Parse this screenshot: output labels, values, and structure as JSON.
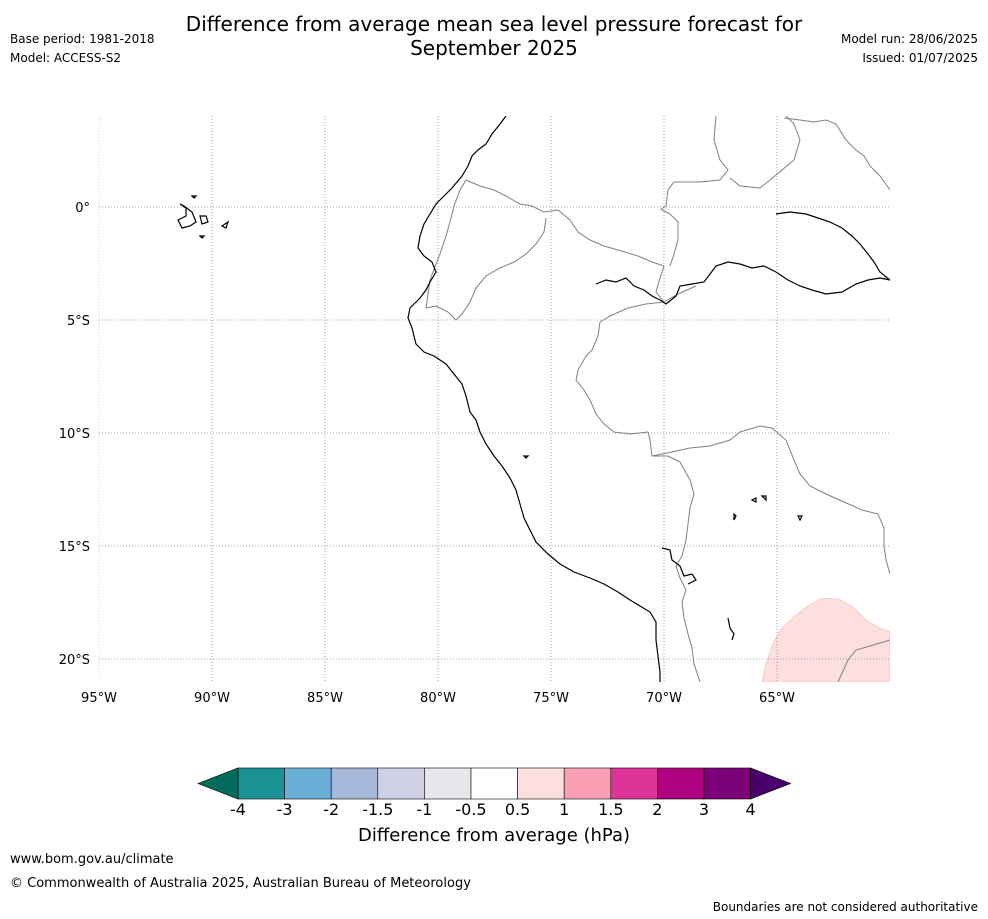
{
  "header": {
    "title": "Difference from average mean sea level pressure forecast for\nSeptember 2025",
    "base_period": "Base period: 1981-2018",
    "model": "Model: ACCESS-S2",
    "model_run": "Model run: 28/06/2025",
    "issued": "Issued: 01/07/2025"
  },
  "map": {
    "lon_labels": [
      "95°W",
      "90°W",
      "85°W",
      "80°W",
      "75°W",
      "70°W",
      "65°W"
    ],
    "lat_labels": [
      "0°",
      "5°S",
      "10°S",
      "15°S",
      "20°S"
    ],
    "coastline_color": "#000000",
    "border_color": "#808080",
    "grid_color": "#888888",
    "anomaly_fill_color": "#fde0dd"
  },
  "colorbar": {
    "title": "Difference from average (hPa)",
    "ticks": [
      "-4",
      "-3",
      "-2",
      "-1.5",
      "-1",
      "-0.5",
      "0.5",
      "1",
      "1.5",
      "2",
      "3",
      "4"
    ],
    "colors": [
      "#1b9296",
      "#6baed6",
      "#a6b8d9",
      "#cfd0e6",
      "#e7e6ea",
      "#ffffff",
      "#fde0dd",
      "#fa9fb5",
      "#dd3497",
      "#ae017e",
      "#7a0177"
    ],
    "low_extend_color": "#016c59",
    "high_extend_color": "#49006a"
  },
  "footer": {
    "url": "www.bom.gov.au/climate",
    "copyright": "© Commonwealth of Australia 2025, Australian Bureau of Meteorology",
    "disclaimer": "Boundaries are not considered authoritative"
  }
}
